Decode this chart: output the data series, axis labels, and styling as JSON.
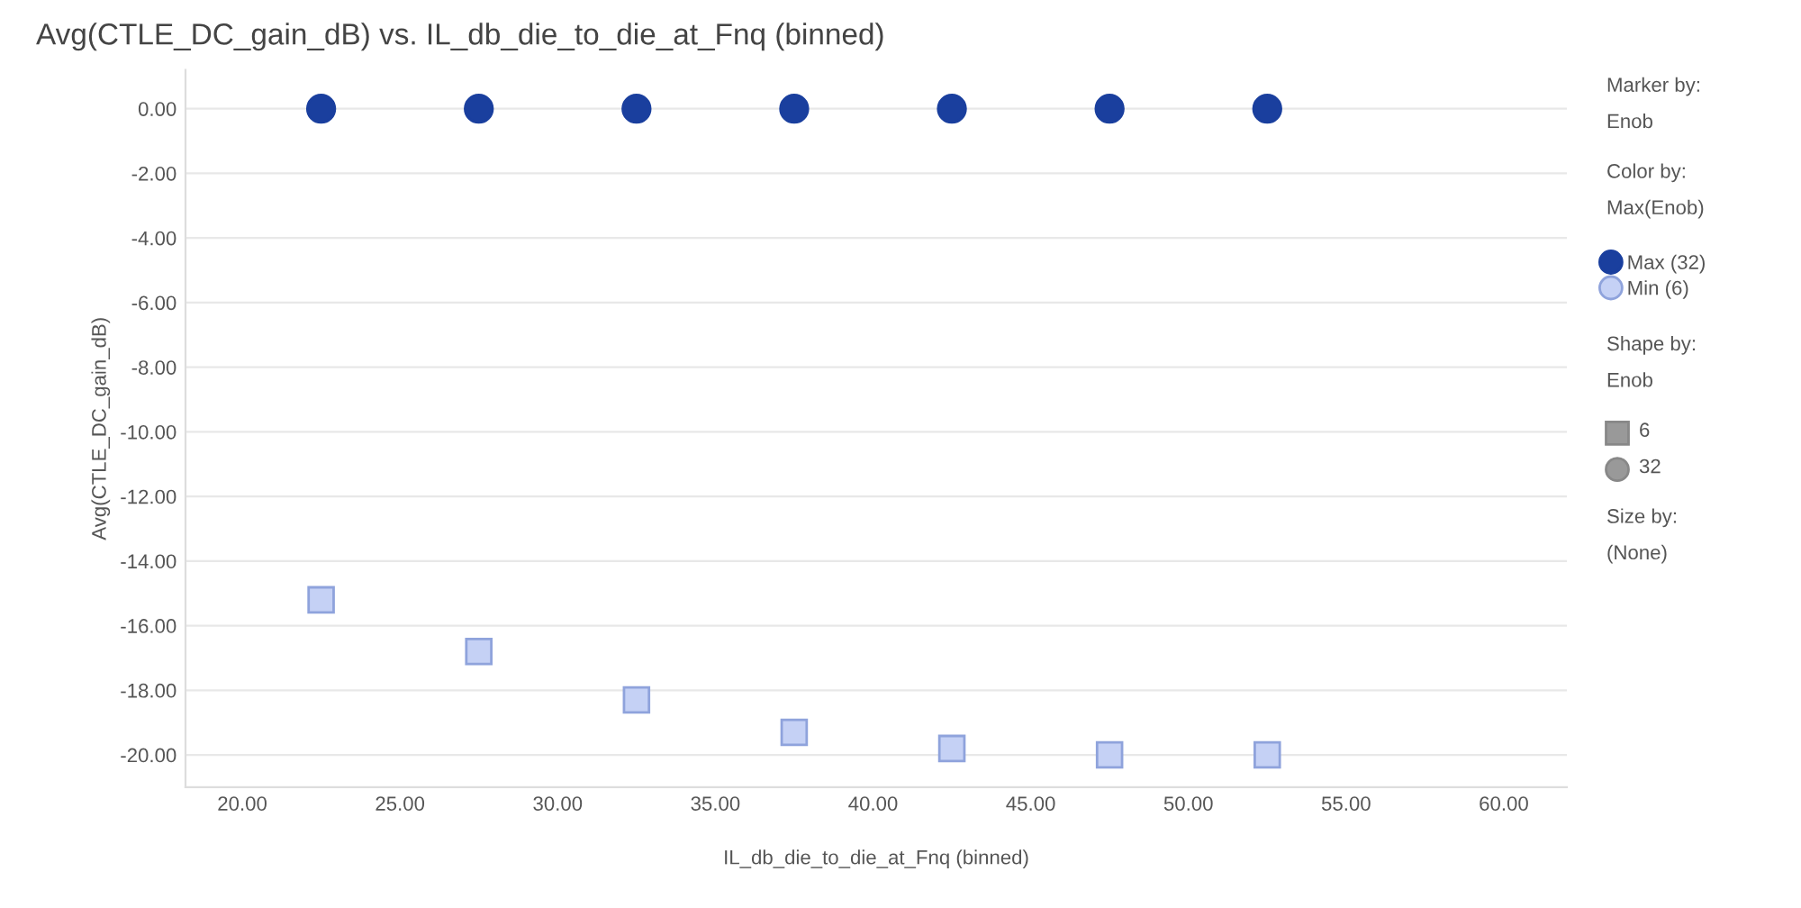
{
  "chart_data": {
    "type": "scatter",
    "title": "Avg(CTLE_DC_gain_dB) vs. IL_db_die_to_die_at_Fnq (binned)",
    "xlabel": "IL_db_die_to_die_at_Fnq (binned)",
    "ylabel": "Avg(CTLE_DC_gain_dB)",
    "x": [
      22.5,
      27.5,
      32.5,
      37.5,
      42.5,
      47.5,
      52.5
    ],
    "series": [
      {
        "name": "Max (32)",
        "color": "#1a3f9e",
        "marker": "circle",
        "values": [
          0,
          0,
          0,
          0,
          0,
          0,
          0
        ]
      },
      {
        "name": "Min (6)",
        "color": "#c5d1f5",
        "marker": "square",
        "values": [
          -15.2,
          -16.8,
          -18.3,
          -19.3,
          -19.8,
          -20.0,
          -20.0
        ]
      }
    ],
    "xlim": [
      18.2,
      62
    ],
    "ylim": [
      -21,
      1.2
    ],
    "xticks": [
      {
        "value": 20,
        "label": "20.00"
      },
      {
        "value": 25,
        "label": "25.00"
      },
      {
        "value": 30,
        "label": "30.00"
      },
      {
        "value": 35,
        "label": "35.00"
      },
      {
        "value": 40,
        "label": "40.00"
      },
      {
        "value": 45,
        "label": "45.00"
      },
      {
        "value": 50,
        "label": "50.00"
      },
      {
        "value": 55,
        "label": "55.00"
      },
      {
        "value": 60,
        "label": "60.00"
      }
    ],
    "yticks": [
      {
        "value": 0,
        "label": "0.00"
      },
      {
        "value": -2,
        "label": "-2.00"
      },
      {
        "value": -4,
        "label": "-4.00"
      },
      {
        "value": -6,
        "label": "-6.00"
      },
      {
        "value": -8,
        "label": "-8.00"
      },
      {
        "value": -10,
        "label": "-10.00"
      },
      {
        "value": -12,
        "label": "-12.00"
      },
      {
        "value": -14,
        "label": "-14.00"
      },
      {
        "value": -16,
        "label": "-16.00"
      },
      {
        "value": -18,
        "label": "-18.00"
      },
      {
        "value": -20,
        "label": "-20.00"
      }
    ],
    "grid": "y",
    "legend": "right",
    "annotations": [
      "Marker by:",
      "Enob",
      "Color by:",
      "Max(Enob)",
      "Shape by:",
      "Enob",
      "6",
      "32",
      "Size by:",
      "(None)"
    ]
  }
}
